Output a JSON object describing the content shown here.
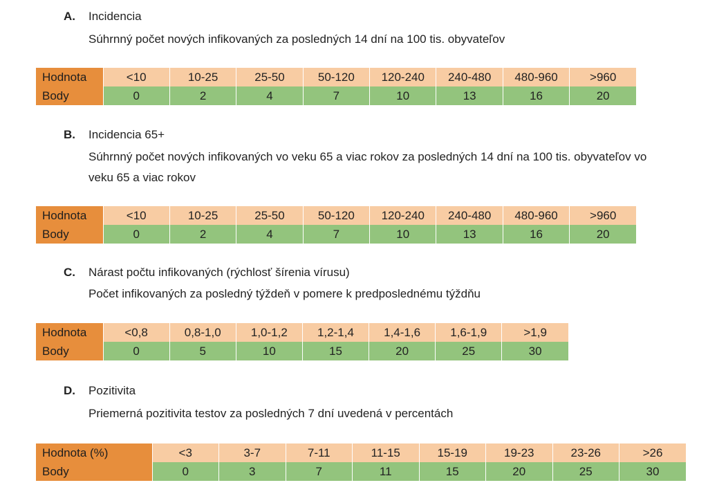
{
  "labels": {
    "hodnota": "Hodnota",
    "body": "Body",
    "hodnota_pct": "Hodnota (%)"
  },
  "sections": [
    {
      "letter": "A.",
      "title": "Incidencia",
      "description": "Súhrnný počet nových infikovaných za posledných 14 dní na 100 tis. obyvateľov",
      "values": [
        "<10",
        "10-25",
        "25-50",
        "50-120",
        "120-240",
        "240-480",
        "480-960",
        ">960"
      ],
      "points": [
        "0",
        "2",
        "4",
        "7",
        "10",
        "13",
        "16",
        "20"
      ]
    },
    {
      "letter": "B.",
      "title": "Incidencia 65+",
      "description": "Súhrnný počet nových infikovaných vo veku 65 a viac rokov za posledných 14 dní na 100 tis. obyvateľov vo veku 65 a viac rokov",
      "values": [
        "<10",
        "10-25",
        "25-50",
        "50-120",
        "120-240",
        "240-480",
        "480-960",
        ">960"
      ],
      "points": [
        "0",
        "2",
        "4",
        "7",
        "10",
        "13",
        "16",
        "20"
      ]
    },
    {
      "letter": "C.",
      "title": "Nárast počtu infikovaných (rýchlosť šírenia vírusu)",
      "description": "Počet infikovaných za posledný týždeň v pomere k predposlednému týždňu",
      "values": [
        "<0,8",
        "0,8-1,0",
        "1,0-1,2",
        "1,2-1,4",
        "1,4-1,6",
        "1,6-1,9",
        ">1,9"
      ],
      "points": [
        "0",
        "5",
        "10",
        "15",
        "20",
        "25",
        "30"
      ]
    },
    {
      "letter": "D.",
      "title": "Pozitivita",
      "description": "Priemerná pozitivita testov za posledných 7 dní uvedená v percentách",
      "values": [
        "<3",
        "3-7",
        "7-11",
        "11-15",
        "15-19",
        "19-23",
        "23-26",
        ">26"
      ],
      "points": [
        "0",
        "3",
        "7",
        "11",
        "15",
        "20",
        "25",
        "30"
      ]
    }
  ]
}
